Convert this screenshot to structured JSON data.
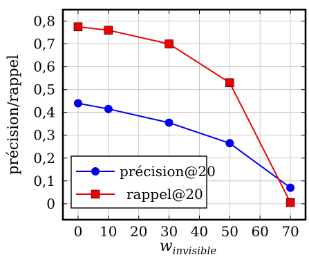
{
  "chart_data": {
    "type": "line",
    "xlabel": "w",
    "xlabel_subscript": "invisible",
    "ylabel": "précision/rappel",
    "xlim": [
      -5,
      75
    ],
    "ylim": [
      -0.07,
      0.85
    ],
    "x_ticks": [
      0,
      10,
      20,
      30,
      40,
      50,
      60,
      70
    ],
    "x_tick_labels": [
      "0",
      "10",
      "20",
      "30",
      "40",
      "50",
      "60",
      "70"
    ],
    "y_ticks": [
      0,
      0.1,
      0.2,
      0.3,
      0.4,
      0.5,
      0.6,
      0.7,
      0.8
    ],
    "y_tick_labels": [
      "0",
      "0,1",
      "0,2",
      "0,3",
      "0,4",
      "0,5",
      "0,6",
      "0,7",
      "0,8"
    ],
    "grid": true,
    "legend_position": "bottom-left",
    "series": [
      {
        "name": "précision@20",
        "color": "#0000ee",
        "marker": "circle",
        "x": [
          0,
          10,
          30,
          50,
          70
        ],
        "y": [
          0.44,
          0.415,
          0.355,
          0.265,
          0.07
        ]
      },
      {
        "name": "rappel@20",
        "color": "#ee0000",
        "marker": "square",
        "x": [
          0,
          10,
          30,
          50,
          70
        ],
        "y": [
          0.775,
          0.76,
          0.7,
          0.53,
          0.005
        ]
      }
    ]
  }
}
